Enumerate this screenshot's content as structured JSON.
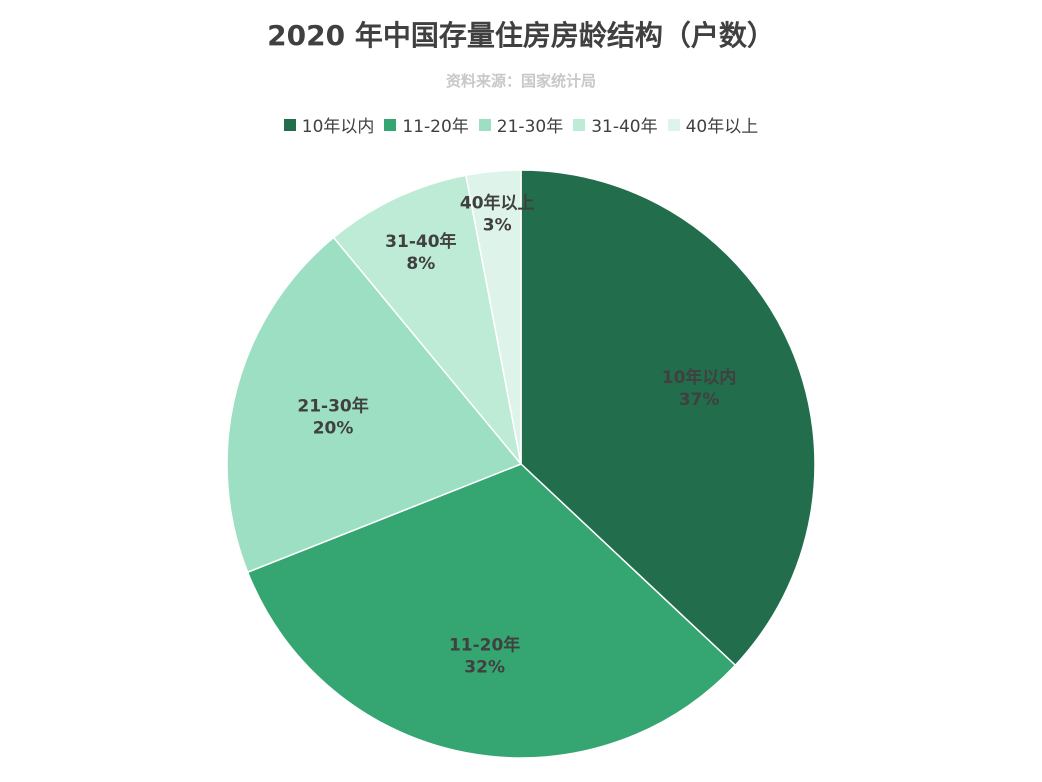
{
  "title": "2020 年中国存量住房房龄结构（户数）",
  "subtitle": "资料来源：国家统计局",
  "chart_data": {
    "type": "pie",
    "title": "2020 年中国存量住房房龄结构（户数）",
    "subtitle": "资料来源：国家统计局",
    "legend_position": "top",
    "categories": [
      "10年以内",
      "11-20年",
      "21-30年",
      "31-40年",
      "40年以上"
    ],
    "values": [
      37,
      32,
      20,
      8,
      3
    ],
    "value_labels": [
      "37%",
      "32%",
      "20%",
      "8%",
      "3%"
    ],
    "colors": [
      "#226d4b",
      "#35a572",
      "#9ddfc2",
      "#bdebd6",
      "#def4ea"
    ]
  }
}
